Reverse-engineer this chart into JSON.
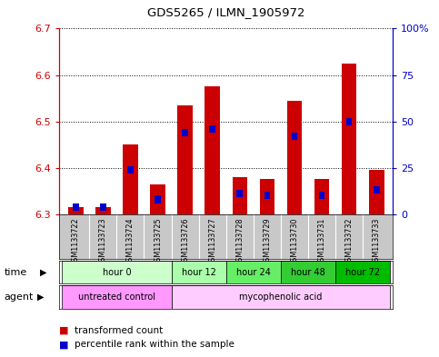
{
  "title": "GDS5265 / ILMN_1905972",
  "samples": [
    "GSM1133722",
    "GSM1133723",
    "GSM1133724",
    "GSM1133725",
    "GSM1133726",
    "GSM1133727",
    "GSM1133728",
    "GSM1133729",
    "GSM1133730",
    "GSM1133731",
    "GSM1133732",
    "GSM1133733"
  ],
  "transformed_count": [
    6.315,
    6.315,
    6.45,
    6.365,
    6.535,
    6.575,
    6.38,
    6.375,
    6.545,
    6.375,
    6.625,
    6.395
  ],
  "percentile_rank": [
    4,
    4,
    24,
    8,
    44,
    46,
    11,
    10,
    42,
    10,
    50,
    13
  ],
  "ylim_left": [
    6.3,
    6.7
  ],
  "ylim_right": [
    0,
    100
  ],
  "yticks_left": [
    6.3,
    6.4,
    6.5,
    6.6,
    6.7
  ],
  "yticks_right": [
    0,
    25,
    50,
    75,
    100
  ],
  "ytick_labels_right": [
    "0",
    "25",
    "50",
    "75",
    "100%"
  ],
  "bar_color": "#cc0000",
  "percentile_color": "#0000cc",
  "base_value": 6.3,
  "time_group_colors": [
    "#ccffcc",
    "#aaffaa",
    "#66ee66",
    "#33cc33",
    "#00bb00"
  ],
  "time_groups": [
    {
      "label": "hour 0",
      "start": 0,
      "end": 4
    },
    {
      "label": "hour 12",
      "start": 4,
      "end": 6
    },
    {
      "label": "hour 24",
      "start": 6,
      "end": 8
    },
    {
      "label": "hour 48",
      "start": 8,
      "end": 10
    },
    {
      "label": "hour 72",
      "start": 10,
      "end": 12
    }
  ],
  "agent_group_colors": [
    "#ff99ff",
    "#ffccff"
  ],
  "agent_groups": [
    {
      "label": "untreated control",
      "start": 0,
      "end": 4
    },
    {
      "label": "mycophenolic acid",
      "start": 4,
      "end": 12
    }
  ],
  "sample_bg": "#c8c8c8",
  "plot_bg": "#ffffff",
  "tick_color_left": "#cc0000",
  "tick_color_right": "#0000cc"
}
